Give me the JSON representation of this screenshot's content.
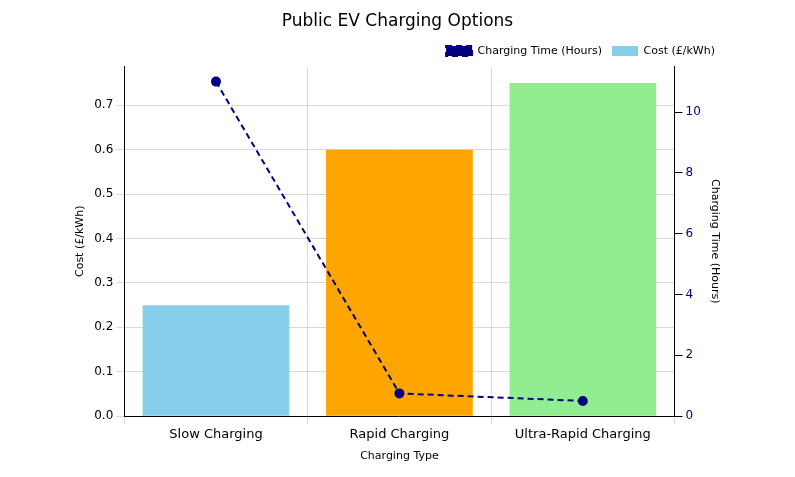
{
  "chart_data": {
    "type": "bar",
    "title": "Public EV Charging Options",
    "categories": [
      "Slow Charging",
      "Rapid Charging",
      "Ultra-Rapid Charging"
    ],
    "x_label": "Charging Type",
    "y_label": "Cost (£/kWh)",
    "y2_label": "Charging Time (Hours)",
    "series": [
      {
        "name": "Cost (£/kWh)",
        "type": "bar",
        "colors": [
          "#87ceeb",
          "#ffa500",
          "#90ee90"
        ],
        "values": [
          0.25,
          0.6,
          0.75
        ]
      },
      {
        "name": "Charging Time (Hours)",
        "type": "line",
        "color": "#000080",
        "marker": "circle",
        "line_style": "dashed",
        "axis": "y2",
        "values": [
          11,
          0.75,
          0.5
        ]
      }
    ],
    "ylim": [
      0,
      0.7875
    ],
    "yticks": [
      {
        "value": 0,
        "label": "0.0"
      },
      0.1,
      0.2,
      0.3,
      0.4,
      0.5,
      0.6,
      0.7
    ],
    "y2lim": [
      0,
      11.5
    ],
    "y2ticks": [
      0,
      2,
      4,
      6,
      8,
      10
    ],
    "grid": true,
    "legend": "upper right"
  }
}
